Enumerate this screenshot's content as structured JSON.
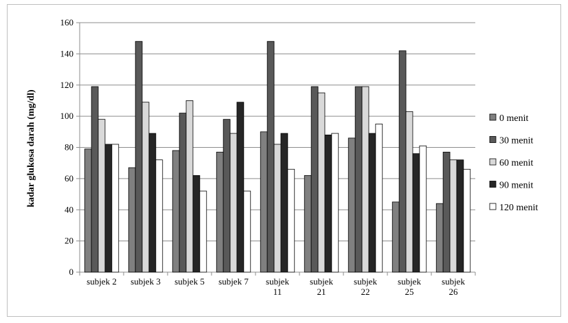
{
  "chart_data": {
    "type": "bar",
    "categories": [
      [
        "subjek 2"
      ],
      [
        "subjek 3"
      ],
      [
        "subjek 5"
      ],
      [
        "subjek 7"
      ],
      [
        "subjek",
        "11"
      ],
      [
        "subjek",
        "21"
      ],
      [
        "subjek",
        "22"
      ],
      [
        "subjek",
        "25"
      ],
      [
        "subjek",
        "26"
      ]
    ],
    "series": [
      {
        "name": "0 menit",
        "color": "#808080",
        "values": [
          79,
          67,
          78,
          77,
          90,
          62,
          86,
          45,
          44
        ]
      },
      {
        "name": "30 menit",
        "color": "#595959",
        "values": [
          119,
          148,
          102,
          98,
          148,
          119,
          119,
          142,
          77
        ]
      },
      {
        "name": "60 menit",
        "color": "#d9d9d9",
        "values": [
          98,
          109,
          110,
          89,
          82,
          115,
          119,
          103,
          72
        ]
      },
      {
        "name": "90 menit",
        "color": "#262626",
        "values": [
          82,
          89,
          62,
          109,
          89,
          88,
          89,
          76,
          72
        ]
      },
      {
        "name": "120 menit",
        "color": "#ffffff",
        "values": [
          82,
          72,
          52,
          52,
          66,
          89,
          95,
          81,
          66
        ]
      }
    ],
    "ylabel": "kadar glukosa darah (mg/dl)",
    "xlabel": "",
    "ylim": [
      0,
      160
    ],
    "yticks": [
      "0",
      "20",
      "40",
      "60",
      "80",
      "100",
      "120",
      "140",
      "160"
    ],
    "grid": true,
    "legend_position": "right"
  }
}
